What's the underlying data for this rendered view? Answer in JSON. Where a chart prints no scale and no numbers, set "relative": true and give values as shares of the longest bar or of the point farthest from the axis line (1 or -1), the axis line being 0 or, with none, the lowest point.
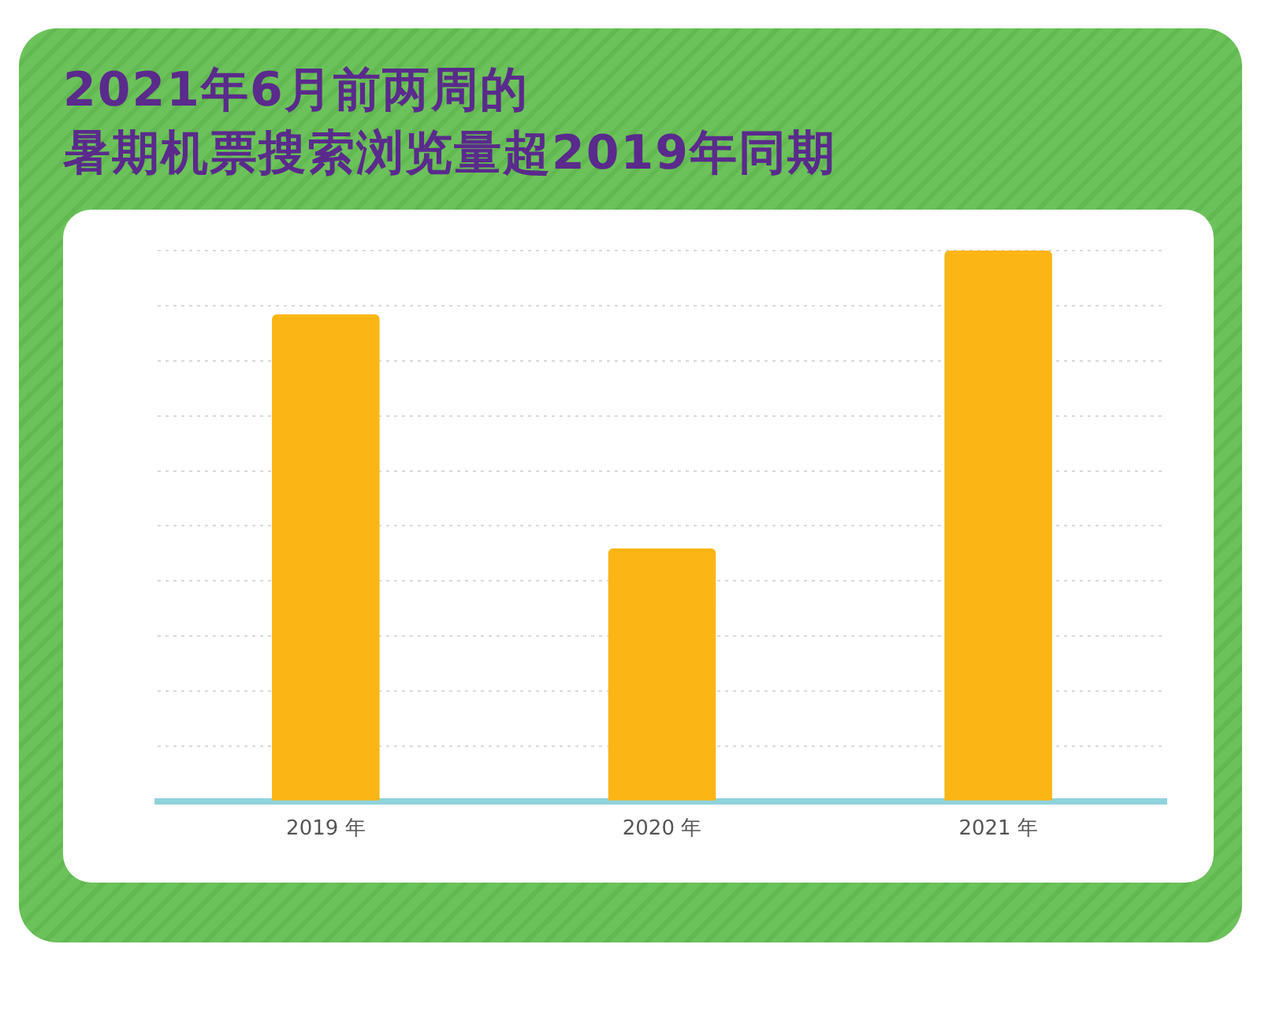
{
  "chart_data": {
    "type": "bar",
    "title": "2021年6月前两周的",
    "subtitle": "暑期机票搜索浏览量超2019年同期",
    "categories": [
      "2019 年",
      "2020 年",
      "2021 年"
    ],
    "values": [
      0.884,
      0.459,
      1
    ],
    "color": "#fbb515",
    "relative": true,
    "grid": "y"
  }
}
